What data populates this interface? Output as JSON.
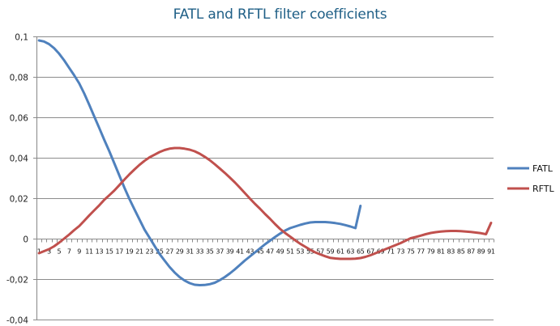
{
  "chart_data": {
    "type": "line",
    "title": "FATL and RFTL filter coefficients",
    "xlabel": "",
    "ylabel": "",
    "ylim": [
      -0.04,
      0.1
    ],
    "yticks": [
      "0,1",
      "0,08",
      "0,06",
      "0,04",
      "0,02",
      "0",
      "-0,02",
      "-0,04"
    ],
    "ytick_values": [
      0.1,
      0.08,
      0.06,
      0.04,
      0.02,
      0,
      -0.02,
      -0.04
    ],
    "x_categories_range": [
      1,
      91
    ],
    "xtick_labels_step": 2,
    "grid": true,
    "legend_position": "right",
    "series": [
      {
        "name": "FATL",
        "color": "#4f81bd",
        "x_start": 1,
        "values": [
          0.098,
          0.0975,
          0.0962,
          0.0942,
          0.0915,
          0.0882,
          0.0845,
          0.0808,
          0.0768,
          0.0718,
          0.0662,
          0.0604,
          0.0547,
          0.0488,
          0.0432,
          0.0372,
          0.0312,
          0.0252,
          0.0196,
          0.0145,
          0.0095,
          0.0045,
          0.0005,
          -0.0035,
          -0.0075,
          -0.0108,
          -0.014,
          -0.0167,
          -0.019,
          -0.0207,
          -0.022,
          -0.0228,
          -0.023,
          -0.0229,
          -0.0225,
          -0.0218,
          -0.0205,
          -0.019,
          -0.0172,
          -0.0152,
          -0.013,
          -0.0108,
          -0.0088,
          -0.0068,
          -0.0048,
          -0.0028,
          -0.001,
          0.0008,
          0.0025,
          0.004,
          0.0052,
          0.006,
          0.0068,
          0.0075,
          0.008,
          0.0082,
          0.0082,
          0.0082,
          0.008,
          0.0077,
          0.0073,
          0.0067,
          0.006,
          0.0052,
          0.0162
        ]
      },
      {
        "name": "RFTL",
        "color": "#c0504d",
        "x_start": 1,
        "values": [
          -0.0072,
          -0.0062,
          -0.0052,
          -0.0038,
          -0.002,
          0.0,
          0.002,
          0.0042,
          0.0062,
          0.0088,
          0.0115,
          0.014,
          0.0165,
          0.0192,
          0.0215,
          0.0238,
          0.0265,
          0.0292,
          0.0318,
          0.0342,
          0.0365,
          0.0385,
          0.0402,
          0.0415,
          0.0428,
          0.0438,
          0.0445,
          0.0448,
          0.0448,
          0.0445,
          0.044,
          0.0432,
          0.042,
          0.0405,
          0.0388,
          0.0368,
          0.0347,
          0.0325,
          0.0302,
          0.0278,
          0.0252,
          0.0225,
          0.0198,
          0.0172,
          0.0148,
          0.0122,
          0.0098,
          0.0072,
          0.0048,
          0.0028,
          0.001,
          -0.0008,
          -0.0025,
          -0.004,
          -0.0055,
          -0.0068,
          -0.0078,
          -0.0087,
          -0.0095,
          -0.0098,
          -0.01,
          -0.01,
          -0.01,
          -0.0099,
          -0.0096,
          -0.009,
          -0.0082,
          -0.0072,
          -0.0062,
          -0.0052,
          -0.0042,
          -0.0032,
          -0.0022,
          -0.001,
          0.0002,
          0.0008,
          0.0015,
          0.0022,
          0.0028,
          0.0032,
          0.0035,
          0.0037,
          0.0038,
          0.0038,
          0.0037,
          0.0035,
          0.0033,
          0.003,
          0.0027,
          0.0022,
          0.0078
        ]
      }
    ]
  }
}
